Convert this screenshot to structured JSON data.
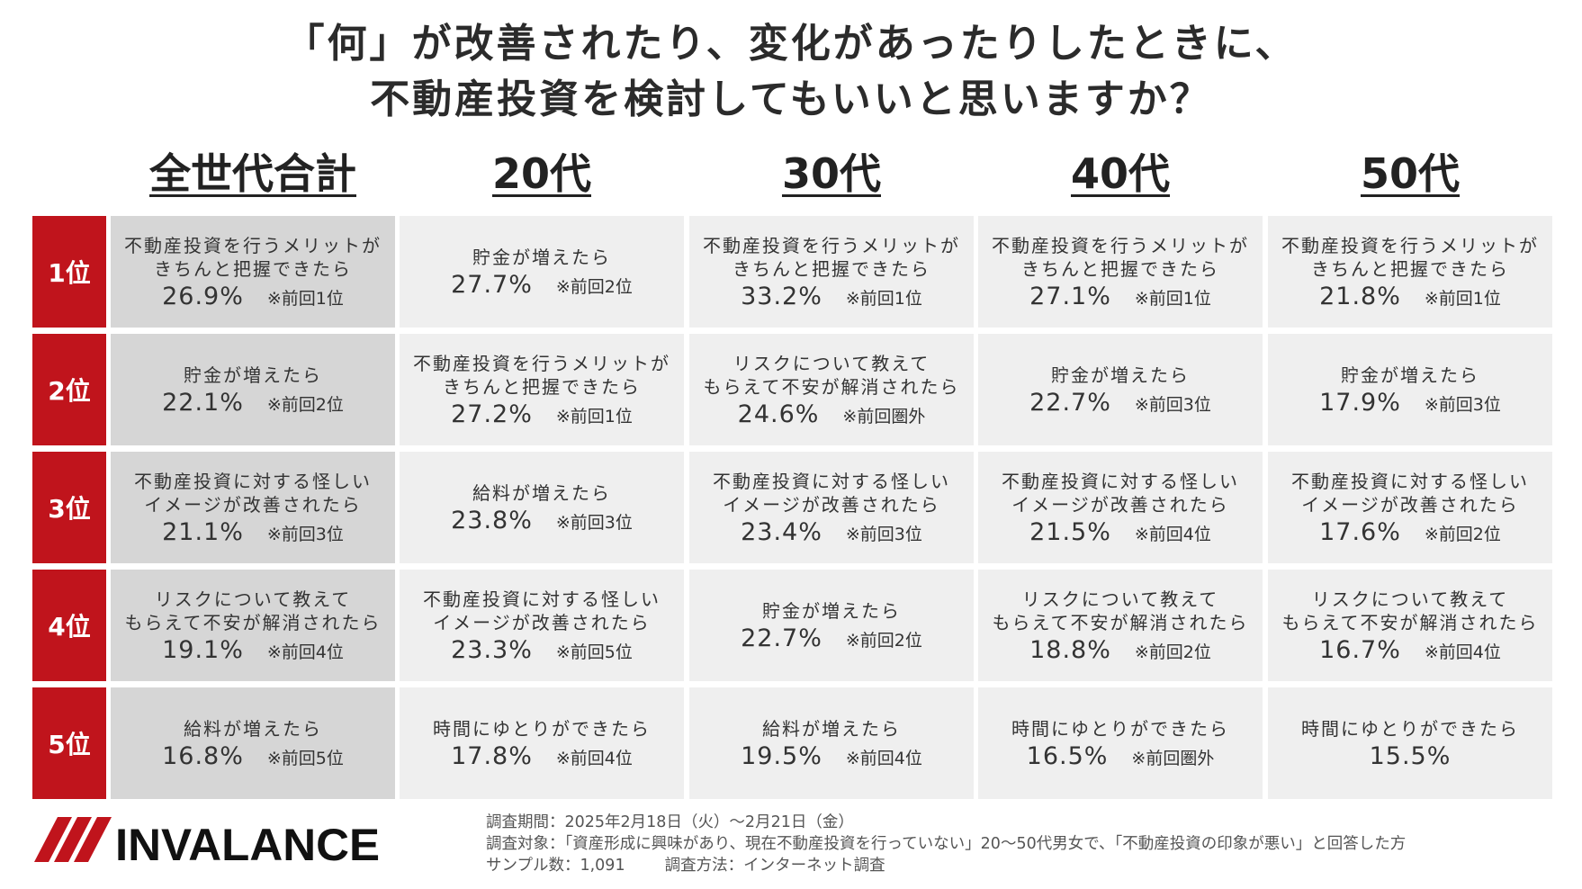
{
  "title": {
    "line1": "「何」が改善されたり、変化があったりしたときに、",
    "line2": "不動産投資を検討してもいいと思いますか？"
  },
  "colors": {
    "accent": "#c0141c",
    "cell": "#efefef",
    "total_cell": "#d6d6d6",
    "text": "#333333"
  },
  "chart_data": {
    "type": "table",
    "columns": [
      "全世代合計",
      "20代",
      "30代",
      "40代",
      "50代"
    ],
    "ranks": [
      "1位",
      "2位",
      "3位",
      "4位",
      "5位"
    ],
    "cells": [
      [
        {
          "lines": [
            "不動産投資を行うメリットが",
            "きちんと把握できたら"
          ],
          "pct": "26.9%",
          "prev": "※前回1位"
        },
        {
          "lines": [
            "貯金が増えたら"
          ],
          "pct": "27.7%",
          "prev": "※前回2位"
        },
        {
          "lines": [
            "不動産投資を行うメリットが",
            "きちんと把握できたら"
          ],
          "pct": "33.2%",
          "prev": "※前回1位"
        },
        {
          "lines": [
            "不動産投資を行うメリットが",
            "きちんと把握できたら"
          ],
          "pct": "27.1%",
          "prev": "※前回1位"
        },
        {
          "lines": [
            "不動産投資を行うメリットが",
            "きちんと把握できたら"
          ],
          "pct": "21.8%",
          "prev": "※前回1位"
        }
      ],
      [
        {
          "lines": [
            "貯金が増えたら"
          ],
          "pct": "22.1%",
          "prev": "※前回2位"
        },
        {
          "lines": [
            "不動産投資を行うメリットが",
            "きちんと把握できたら"
          ],
          "pct": "27.2%",
          "prev": "※前回1位"
        },
        {
          "lines": [
            "リスクについて教えて",
            "もらえて不安が解消されたら"
          ],
          "pct": "24.6%",
          "prev": "※前回圏外"
        },
        {
          "lines": [
            "貯金が増えたら"
          ],
          "pct": "22.7%",
          "prev": "※前回3位"
        },
        {
          "lines": [
            "貯金が増えたら"
          ],
          "pct": "17.9%",
          "prev": "※前回3位"
        }
      ],
      [
        {
          "lines": [
            "不動産投資に対する怪しい",
            "イメージが改善されたら"
          ],
          "pct": "21.1%",
          "prev": "※前回3位"
        },
        {
          "lines": [
            "給料が増えたら"
          ],
          "pct": "23.8%",
          "prev": "※前回3位"
        },
        {
          "lines": [
            "不動産投資に対する怪しい",
            "イメージが改善されたら"
          ],
          "pct": "23.4%",
          "prev": "※前回3位"
        },
        {
          "lines": [
            "不動産投資に対する怪しい",
            "イメージが改善されたら"
          ],
          "pct": "21.5%",
          "prev": "※前回4位"
        },
        {
          "lines": [
            "不動産投資に対する怪しい",
            "イメージが改善されたら"
          ],
          "pct": "17.6%",
          "prev": "※前回2位"
        }
      ],
      [
        {
          "lines": [
            "リスクについて教えて",
            "もらえて不安が解消されたら"
          ],
          "pct": "19.1%",
          "prev": "※前回4位"
        },
        {
          "lines": [
            "不動産投資に対する怪しい",
            "イメージが改善されたら"
          ],
          "pct": "23.3%",
          "prev": "※前回5位"
        },
        {
          "lines": [
            "貯金が増えたら"
          ],
          "pct": "22.7%",
          "prev": "※前回2位"
        },
        {
          "lines": [
            "リスクについて教えて",
            "もらえて不安が解消されたら"
          ],
          "pct": "18.8%",
          "prev": "※前回2位"
        },
        {
          "lines": [
            "リスクについて教えて",
            "もらえて不安が解消されたら"
          ],
          "pct": "16.7%",
          "prev": "※前回4位"
        }
      ],
      [
        {
          "lines": [
            "給料が増えたら"
          ],
          "pct": "16.8%",
          "prev": "※前回5位"
        },
        {
          "lines": [
            "時間にゆとりができたら"
          ],
          "pct": "17.8%",
          "prev": "※前回4位"
        },
        {
          "lines": [
            "給料が増えたら"
          ],
          "pct": "19.5%",
          "prev": "※前回4位"
        },
        {
          "lines": [
            "時間にゆとりができたら"
          ],
          "pct": "16.5%",
          "prev": "※前回圏外"
        },
        {
          "lines": [
            "時間にゆとりができたら"
          ],
          "pct": "15.5%",
          "prev": ""
        }
      ]
    ]
  },
  "footer": {
    "logo_text": "INVALANCE",
    "period": "調査期間：2025年2月18日（火）～2月21日（金）",
    "target": "調査対象：「資産形成に興味があり、現在不動産投資を行っていない」20～50代男女で、「不動産投資の印象が悪い」と回答した方",
    "sample": "サンプル数：1,091",
    "method": "調査方法：インターネット調査"
  }
}
